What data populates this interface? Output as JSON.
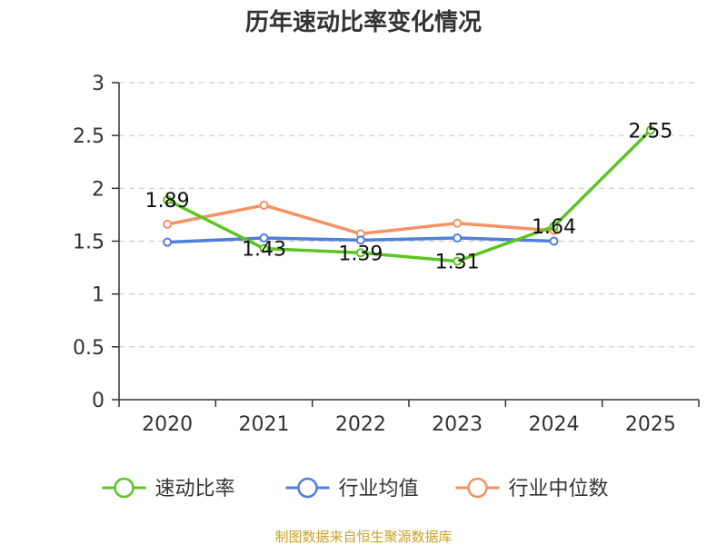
{
  "chart_data": {
    "type": "line",
    "title": "历年速动比率变化情况",
    "xlabel": "",
    "ylabel": "",
    "categories": [
      "2020",
      "2021",
      "2022",
      "2023",
      "2024",
      "2025"
    ],
    "ylim": [
      0,
      3
    ],
    "yticks": [
      "0",
      "0.5",
      "1",
      "1.5",
      "2",
      "2.5",
      "3"
    ],
    "grid": true,
    "legend_position": "bottom",
    "series": [
      {
        "name": "速动比率",
        "color": "#5cc423",
        "values": [
          1.89,
          1.43,
          1.39,
          1.31,
          1.64,
          2.55
        ],
        "labels": [
          "1.89",
          "1.43",
          "1.39",
          "1.31",
          "1.64",
          "2.55"
        ]
      },
      {
        "name": "行业均值",
        "color": "#4f7fdc",
        "values": [
          1.49,
          1.53,
          1.51,
          1.53,
          1.5,
          null
        ]
      },
      {
        "name": "行业中位数",
        "color": "#f59263",
        "values": [
          1.66,
          1.84,
          1.57,
          1.67,
          1.6,
          null
        ]
      }
    ]
  },
  "footer": {
    "source": "制图数据来自恒生聚源数据库"
  }
}
